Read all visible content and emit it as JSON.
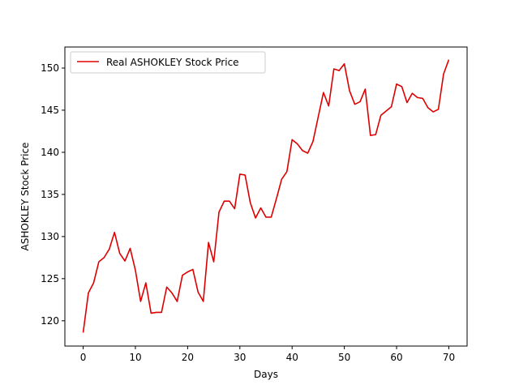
{
  "chart_data": {
    "type": "line",
    "title": "",
    "xlabel": "Days",
    "ylabel": "ASHOKLEY Stock Price",
    "xlim": [
      -3.5,
      73.5
    ],
    "ylim": [
      117.0,
      152.5
    ],
    "xticks": [
      0,
      10,
      20,
      30,
      40,
      50,
      60,
      70
    ],
    "yticks": [
      120,
      125,
      130,
      135,
      140,
      145,
      150
    ],
    "grid": false,
    "legend_position": "top-left",
    "series": [
      {
        "name": "Real ASHOKLEY Stock Price",
        "color": "#dd0000",
        "x": [
          0,
          1,
          2,
          3,
          4,
          5,
          6,
          7,
          8,
          9,
          10,
          11,
          12,
          13,
          14,
          15,
          16,
          17,
          18,
          19,
          20,
          21,
          22,
          23,
          24,
          25,
          26,
          27,
          28,
          29,
          30,
          31,
          32,
          33,
          34,
          35,
          36,
          37,
          38,
          39,
          40,
          41,
          42,
          43,
          44,
          45,
          46,
          47,
          48,
          49,
          50,
          51,
          52,
          53,
          54,
          55,
          56,
          57,
          58,
          59,
          60,
          61,
          62,
          63,
          64,
          65,
          66,
          67,
          68,
          69,
          70
        ],
        "values": [
          118.6,
          123.3,
          124.5,
          127.0,
          127.5,
          128.5,
          130.5,
          128.0,
          127.1,
          128.6,
          126.0,
          122.3,
          124.5,
          120.9,
          121.0,
          121.0,
          124.0,
          123.3,
          122.3,
          125.4,
          125.8,
          126.1,
          123.4,
          122.3,
          129.3,
          127.0,
          132.9,
          134.2,
          134.2,
          133.3,
          137.4,
          137.3,
          134.0,
          132.2,
          133.4,
          132.3,
          132.3,
          134.5,
          136.8,
          137.7,
          141.5,
          141.0,
          140.2,
          139.9,
          141.3,
          144.2,
          147.1,
          145.5,
          149.9,
          149.7,
          150.5,
          147.3,
          145.7,
          146.0,
          147.5,
          142.0,
          142.1,
          144.4,
          144.9,
          145.4,
          148.1,
          147.8,
          145.9,
          147.0,
          146.5,
          146.4,
          145.3,
          144.8,
          145.1,
          149.3,
          151.0
        ]
      }
    ]
  }
}
